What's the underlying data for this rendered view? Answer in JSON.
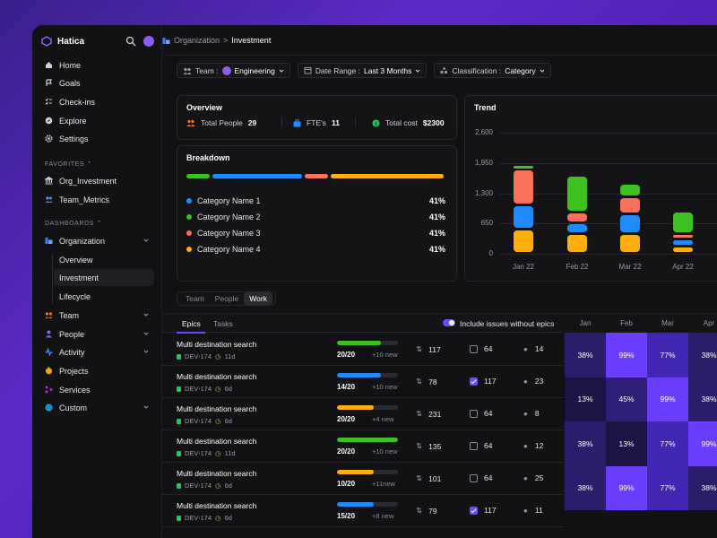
{
  "app": {
    "name": "Hatica"
  },
  "sidebar": {
    "items": [
      {
        "label": "Home"
      },
      {
        "label": "Goals"
      },
      {
        "label": "Check-ins"
      },
      {
        "label": "Explore"
      },
      {
        "label": "Settings"
      }
    ],
    "favorites_label": "FAVORITES",
    "favorites": [
      {
        "label": "Org_Investment"
      },
      {
        "label": "Team_Metrics"
      }
    ],
    "dashboards_label": "DASHBOARDS",
    "organization": {
      "label": "Organization",
      "children": [
        {
          "label": "Overview"
        },
        {
          "label": "Investment"
        },
        {
          "label": "Lifecycle"
        }
      ]
    },
    "groups": [
      {
        "label": "Team"
      },
      {
        "label": "People"
      },
      {
        "label": "Activity"
      },
      {
        "label": "Projects"
      },
      {
        "label": "Services"
      },
      {
        "label": "Custom"
      }
    ]
  },
  "breadcrumb": {
    "parent": "Organization",
    "current": "Investment",
    "sep": ">"
  },
  "filters": {
    "team_label": "Team :",
    "team_value": "Engineering",
    "date_label": "Date Range :",
    "date_value": "Last 3 Months",
    "class_label": "Classification :",
    "class_value": "Category"
  },
  "overview": {
    "title": "Overview",
    "people_label": "Total People",
    "people_value": "29",
    "fte_label": "FTE's",
    "fte_value": "11",
    "cost_label": "Total cost",
    "cost_value": "$2300"
  },
  "breakdown": {
    "title": "Breakdown",
    "categories": [
      {
        "label": "Category Name 1",
        "pct": "41%",
        "color": "#1f8bff"
      },
      {
        "label": "Category Name 2",
        "pct": "41%",
        "color": "#3cc11e"
      },
      {
        "label": "Category Name 3",
        "pct": "41%",
        "color": "#f9705b"
      },
      {
        "label": "Category Name 4",
        "pct": "41%",
        "color": "#ffae0d"
      }
    ],
    "bar_colors": [
      "#3cc11e",
      "#1f8bff",
      "#f9705b",
      "#ffae0d"
    ],
    "bar_fractions": [
      0.13,
      0.46,
      0.13,
      0.58
    ]
  },
  "chart_data": {
    "type": "bar",
    "title": "Trend",
    "categories": [
      "Jan 22",
      "Feb 22",
      "Mar 22",
      "Apr 22"
    ],
    "yticks": [
      "2,600",
      "1,950",
      "1,300",
      "650",
      "0"
    ],
    "ylim": [
      0,
      2600
    ],
    "stack_order": [
      "Category Name 4",
      "Category Name 1",
      "Category Name 3",
      "Category Name 2"
    ],
    "series": [
      {
        "name": "Category Name 4",
        "color": "#ffae0d",
        "values": [
          530,
          430,
          430,
          160
        ]
      },
      {
        "name": "Category Name 1",
        "color": "#1f8bff",
        "values": [
          520,
          230,
          420,
          150
        ]
      },
      {
        "name": "Category Name 3",
        "color": "#f9705b",
        "values": [
          770,
          240,
          370,
          130
        ]
      },
      {
        "name": "Category Name 2",
        "color": "#3cc11e",
        "values": [
          90,
          780,
          300,
          480
        ]
      }
    ]
  },
  "view_tabs": [
    {
      "label": "Team"
    },
    {
      "label": "People"
    },
    {
      "label": "Work"
    }
  ],
  "sub_tabs": [
    {
      "label": "Epics"
    },
    {
      "label": "Tasks"
    }
  ],
  "include_label": "Include issues without epics",
  "rows": [
    {
      "title": "Multi destination search",
      "id": "DEV-174",
      "age": "11d",
      "progress": "20/20",
      "newc": "+10 new",
      "pct": 0.72,
      "color": "#3cc11e",
      "prs": "117",
      "checked": false,
      "tasks": "64",
      "people": "14"
    },
    {
      "title": "Multi destination search",
      "id": "DEV-174",
      "age": "6d",
      "progress": "14/20",
      "newc": "+10 new",
      "pct": 0.72,
      "color": "#1f8bff",
      "prs": "78",
      "checked": true,
      "tasks": "117",
      "people": "23"
    },
    {
      "title": "Multi destination search",
      "id": "DEV-174",
      "age": "6d",
      "progress": "20/20",
      "newc": "+4 new",
      "pct": 0.6,
      "color": "#ffae0d",
      "prs": "231",
      "checked": false,
      "tasks": "64",
      "people": "8"
    },
    {
      "title": "Multi destination search",
      "id": "DEV-174",
      "age": "11d",
      "progress": "20/20",
      "newc": "+10 new",
      "pct": 1.0,
      "color": "#3cc11e",
      "prs": "135",
      "checked": false,
      "tasks": "64",
      "people": "12"
    },
    {
      "title": "Multi destination search",
      "id": "DEV-174",
      "age": "6d",
      "progress": "10/20",
      "newc": "+11new",
      "pct": 0.6,
      "color": "#ffae0d",
      "prs": "101",
      "checked": false,
      "tasks": "64",
      "people": "25"
    },
    {
      "title": "Multi destination search",
      "id": "DEV-174",
      "age": "6d",
      "progress": "15/20",
      "newc": "+8 new",
      "pct": 0.6,
      "color": "#1f8bff",
      "prs": "79",
      "checked": true,
      "tasks": "117",
      "people": "11"
    }
  ],
  "heatmap": {
    "months": [
      "Jan",
      "Feb",
      "Mar",
      "Apr"
    ],
    "rows": [
      [
        {
          "v": "38%",
          "c": "#2b1d6b"
        },
        {
          "v": "99%",
          "c": "#6a3dff"
        },
        {
          "v": "77%",
          "c": "#4326b3"
        },
        {
          "v": "38%",
          "c": "#2b1d6b"
        }
      ],
      [
        {
          "v": "13%",
          "c": "#1b1444"
        },
        {
          "v": "45%",
          "c": "#2f1f78"
        },
        {
          "v": "99%",
          "c": "#6a3dff"
        },
        {
          "v": "38%",
          "c": "#2b1d6b"
        }
      ],
      [
        {
          "v": "38%",
          "c": "#2b1d6b"
        },
        {
          "v": "13%",
          "c": "#1b1444"
        },
        {
          "v": "77%",
          "c": "#4326b3"
        },
        {
          "v": "99%",
          "c": "#6a3dff"
        }
      ],
      [
        {
          "v": "38%",
          "c": "#2b1d6b"
        },
        {
          "v": "99%",
          "c": "#6a3dff"
        },
        {
          "v": "77%",
          "c": "#4326b3"
        },
        {
          "v": "38%",
          "c": "#2b1d6b"
        }
      ]
    ]
  }
}
